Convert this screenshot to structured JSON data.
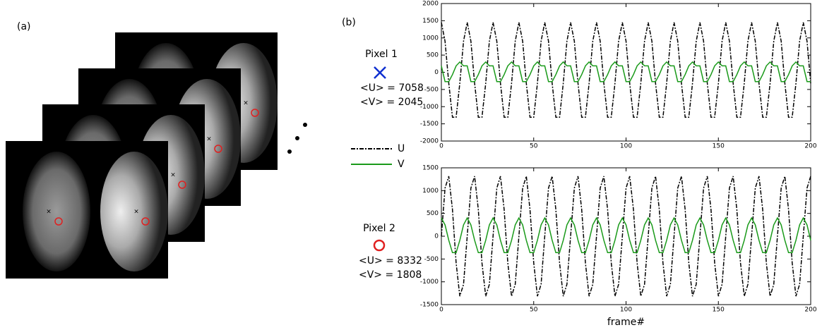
{
  "panel_a": {
    "label": "(a)"
  },
  "panel_b": {
    "label": "(b)"
  },
  "pixels": [
    {
      "label": "Pixel 1",
      "u": "<U> = 7058",
      "v": "<V> = 2045"
    },
    {
      "label": "Pixel 2",
      "u": "<U> = 8332",
      "v": "<V> = 1808"
    }
  ],
  "chart_data": [
    {
      "type": "line",
      "grid": false,
      "x": [
        0,
        2,
        4,
        6,
        8,
        10,
        12,
        14,
        16,
        18,
        20,
        22,
        24,
        26,
        28,
        30,
        32,
        34,
        36,
        38,
        40,
        42,
        44,
        46,
        48,
        50,
        52,
        54,
        56,
        58,
        60,
        62,
        64,
        66,
        68,
        70,
        72,
        74,
        76,
        78,
        80,
        82,
        84,
        86,
        88,
        90,
        92,
        94,
        96,
        98,
        100,
        102,
        104,
        106,
        108,
        110,
        112,
        114,
        116,
        118,
        120,
        122,
        124,
        126,
        128,
        130,
        132,
        134,
        136,
        138,
        140,
        142,
        144,
        146,
        148,
        150,
        152,
        154,
        156,
        158,
        160,
        162,
        164,
        166,
        168,
        170,
        172,
        174,
        176,
        178,
        180,
        182,
        184,
        186,
        188,
        190,
        192,
        194,
        196,
        198,
        200
      ],
      "xlim": [
        0,
        200
      ],
      "xticks": [
        0,
        50,
        100,
        150,
        200
      ],
      "ylim": [
        -2000,
        2000
      ],
      "yticks": [
        -2000,
        -1500,
        -1000,
        -500,
        0,
        500,
        1000,
        1500,
        2000
      ],
      "series": [
        {
          "name": "U",
          "color": "#000000",
          "linestyle": "dashdot",
          "values": [
            1450,
            904,
            -323,
            -1306,
            -1306,
            -323,
            904,
            1450,
            904,
            -323,
            -1306,
            -1306,
            -323,
            904,
            1450,
            904,
            -323,
            -1306,
            -1306,
            -323,
            904,
            1450,
            904,
            -323,
            -1306,
            -1306,
            -323,
            904,
            1450,
            904,
            -323,
            -1306,
            -1306,
            -323,
            904,
            1450,
            904,
            -323,
            -1306,
            -1306,
            -323,
            904,
            1450,
            904,
            -323,
            -1306,
            -1306,
            -323,
            904,
            1450,
            904,
            -323,
            -1306,
            -1306,
            -323,
            904,
            1450,
            904,
            -323,
            -1306,
            -1306,
            -323,
            904,
            1450,
            904,
            -323,
            -1306,
            -1306,
            -323,
            904,
            1450,
            904,
            -323,
            -1306,
            -1306,
            -323,
            904,
            1450,
            904,
            -323,
            -1306,
            -1306,
            -323,
            904,
            1450,
            904,
            -323,
            -1306,
            -1306,
            -323,
            904,
            1450,
            904,
            -323,
            -1306,
            -1306,
            -323,
            904,
            1450,
            904,
            -323
          ]
        },
        {
          "name": "V",
          "color": "#1a9a1a",
          "linestyle": "solid",
          "values": [
            187,
            -270,
            -270,
            -67,
            187,
            300,
            187,
            187,
            -270,
            -270,
            -67,
            187,
            300,
            187,
            187,
            -270,
            -270,
            -67,
            187,
            300,
            187,
            187,
            -270,
            -270,
            -67,
            187,
            300,
            187,
            187,
            -270,
            -270,
            -67,
            187,
            300,
            187,
            187,
            -270,
            -270,
            -67,
            187,
            300,
            187,
            187,
            -270,
            -270,
            -67,
            187,
            300,
            187,
            187,
            -270,
            -270,
            -67,
            187,
            300,
            187,
            187,
            -270,
            -270,
            -67,
            187,
            300,
            187,
            187,
            -270,
            -270,
            -67,
            187,
            300,
            187,
            187,
            -270,
            -270,
            -67,
            187,
            300,
            187,
            187,
            -270,
            -270,
            -67,
            187,
            300,
            187,
            187,
            -270,
            -270,
            -67,
            187,
            300,
            187,
            187,
            -270,
            -270,
            -67,
            187,
            300,
            187,
            187,
            -270,
            -270
          ]
        }
      ]
    },
    {
      "type": "line",
      "grid": false,
      "xlabel": "frame#",
      "x": [
        0,
        2,
        4,
        6,
        8,
        10,
        12,
        14,
        16,
        18,
        20,
        22,
        24,
        26,
        28,
        30,
        32,
        34,
        36,
        38,
        40,
        42,
        44,
        46,
        48,
        50,
        52,
        54,
        56,
        58,
        60,
        62,
        64,
        66,
        68,
        70,
        72,
        74,
        76,
        78,
        80,
        82,
        84,
        86,
        88,
        90,
        92,
        94,
        96,
        98,
        100,
        102,
        104,
        106,
        108,
        110,
        112,
        114,
        116,
        118,
        120,
        122,
        124,
        126,
        128,
        130,
        132,
        134,
        136,
        138,
        140,
        142,
        144,
        146,
        148,
        150,
        152,
        154,
        156,
        158,
        160,
        162,
        164,
        166,
        168,
        170,
        172,
        174,
        176,
        178,
        180,
        182,
        184,
        186,
        188,
        190,
        192,
        194,
        196,
        198,
        200
      ],
      "xlim": [
        0,
        200
      ],
      "xticks": [
        0,
        50,
        100,
        150,
        200
      ],
      "ylim": [
        -1500,
        1500
      ],
      "yticks": [
        -1500,
        -1000,
        -500,
        0,
        500,
        1000,
        1500
      ],
      "series": [
        {
          "color": "#000000",
          "linestyle": "dashdot",
          "values": [
            0,
            1055,
            1316,
            586,
            -586,
            -1316,
            -1055,
            0,
            1055,
            1316,
            586,
            -586,
            -1316,
            -1055,
            0,
            1055,
            1316,
            586,
            -586,
            -1316,
            -1055,
            0,
            1055,
            1316,
            586,
            -586,
            -1316,
            -1055,
            0,
            1055,
            1316,
            586,
            -586,
            -1316,
            -1055,
            0,
            1055,
            1316,
            586,
            -586,
            -1316,
            -1055,
            0,
            1055,
            1316,
            586,
            -586,
            -1316,
            -1055,
            0,
            1055,
            1316,
            586,
            -586,
            -1316,
            -1055,
            0,
            1055,
            1316,
            586,
            -586,
            -1316,
            -1055,
            0,
            1055,
            1316,
            586,
            -586,
            -1316,
            -1055,
            0,
            1055,
            1316,
            586,
            -586,
            -1316,
            -1055,
            0,
            1055,
            1316,
            586,
            -586,
            -1316,
            -1055,
            0,
            1055,
            1316,
            586,
            -586,
            -1316,
            -1055,
            0,
            1055,
            1316,
            586,
            -586,
            -1316,
            -1055,
            0,
            1055,
            1316
          ]
        },
        {
          "color": "#1a9a1a",
          "linestyle": "solid",
          "values": [
            400,
            249,
            -89,
            -360,
            -360,
            -89,
            249,
            400,
            249,
            -89,
            -360,
            -360,
            -89,
            249,
            400,
            249,
            -89,
            -360,
            -360,
            -89,
            249,
            400,
            249,
            -89,
            -360,
            -360,
            -89,
            249,
            400,
            249,
            -89,
            -360,
            -360,
            -89,
            249,
            400,
            249,
            -89,
            -360,
            -360,
            -89,
            249,
            400,
            249,
            -89,
            -360,
            -360,
            -89,
            249,
            400,
            249,
            -89,
            -360,
            -360,
            -89,
            249,
            400,
            249,
            -89,
            -360,
            -360,
            -89,
            249,
            400,
            249,
            -89,
            -360,
            -360,
            -89,
            249,
            400,
            249,
            -89,
            -360,
            -360,
            -89,
            249,
            400,
            249,
            -89,
            -360,
            -360,
            -89,
            249,
            400,
            249,
            -89,
            -360,
            -360,
            -89,
            249,
            400,
            249,
            -89,
            -360,
            -360,
            -89,
            249,
            400,
            249,
            -89
          ]
        }
      ]
    }
  ]
}
